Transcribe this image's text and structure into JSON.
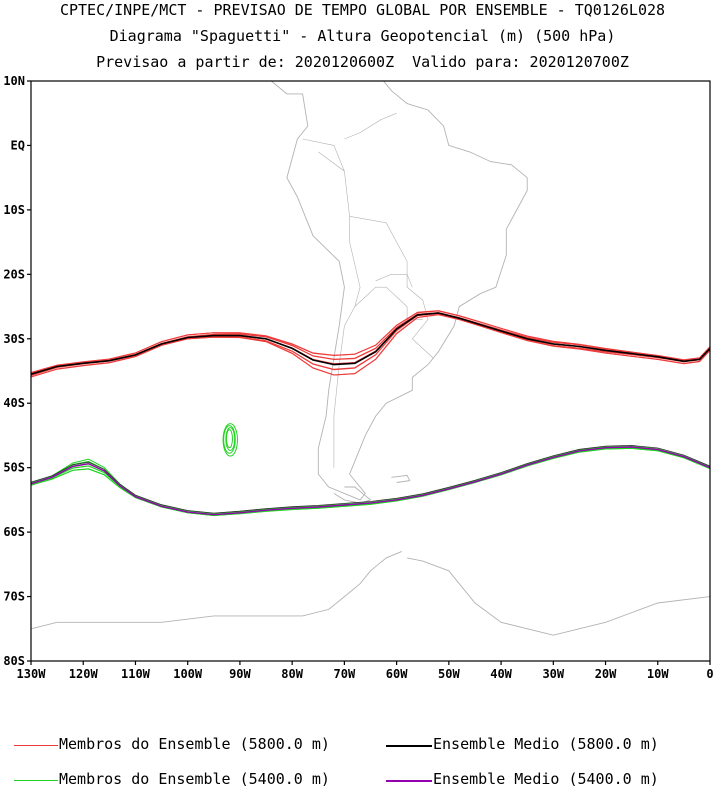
{
  "header": {
    "line1": "CPTEC/INPE/MCT - PREVISAO DE TEMPO GLOBAL POR ENSEMBLE - TQ0126L028",
    "line2": "Diagrama \"Spaguetti\" - Altura Geopotencial (m) (500 hPa)",
    "line3": "Previsao a partir de: 2020120600Z  Valido para: 2020120700Z"
  },
  "map": {
    "lon_range": [
      -130,
      0
    ],
    "lat_range": [
      -80,
      10
    ],
    "lat_ticks": [
      {
        "lat": 10,
        "label": "10N"
      },
      {
        "lat": 0,
        "label": "EQ"
      },
      {
        "lat": -10,
        "label": "10S"
      },
      {
        "lat": -20,
        "label": "20S"
      },
      {
        "lat": -30,
        "label": "30S"
      },
      {
        "lat": -40,
        "label": "40S"
      },
      {
        "lat": -50,
        "label": "50S"
      },
      {
        "lat": -60,
        "label": "60S"
      },
      {
        "lat": -70,
        "label": "70S"
      },
      {
        "lat": -80,
        "label": "80S"
      }
    ],
    "lon_ticks": [
      {
        "lon": -130,
        "label": "130W"
      },
      {
        "lon": -120,
        "label": "120W"
      },
      {
        "lon": -110,
        "label": "110W"
      },
      {
        "lon": -100,
        "label": "100W"
      },
      {
        "lon": -90,
        "label": "90W"
      },
      {
        "lon": -80,
        "label": "80W"
      },
      {
        "lon": -70,
        "label": "70W"
      },
      {
        "lon": -60,
        "label": "60W"
      },
      {
        "lon": -50,
        "label": "50W"
      },
      {
        "lon": -40,
        "label": "40W"
      },
      {
        "lon": -30,
        "label": "30W"
      },
      {
        "lon": -20,
        "label": "20W"
      },
      {
        "lon": -10,
        "label": "10W"
      },
      {
        "lon": 0,
        "label": "0"
      }
    ],
    "colors": {
      "member_5800": "#ef3b3b",
      "mean_5800": "#000000",
      "member_5400": "#22d422",
      "mean_5400": "#9400b0",
      "coast": "#b3b3b3"
    },
    "contour_5800_mean": [
      [
        -130,
        -35.5
      ],
      [
        -125,
        -34.3
      ],
      [
        -120,
        -33.8
      ],
      [
        -115,
        -33.4
      ],
      [
        -110,
        -32.5
      ],
      [
        -105,
        -30.8
      ],
      [
        -100,
        -29.8
      ],
      [
        -95,
        -29.5
      ],
      [
        -90,
        -29.5
      ],
      [
        -85,
        -30.0
      ],
      [
        -80,
        -31.5
      ],
      [
        -76,
        -33.3
      ],
      [
        -72,
        -34.0
      ],
      [
        -68,
        -33.8
      ],
      [
        -64,
        -32.0
      ],
      [
        -60,
        -28.5
      ],
      [
        -56,
        -26.3
      ],
      [
        -52,
        -26.0
      ],
      [
        -48,
        -26.8
      ],
      [
        -44,
        -27.8
      ],
      [
        -40,
        -28.8
      ],
      [
        -35,
        -30.0
      ],
      [
        -30,
        -30.8
      ],
      [
        -25,
        -31.2
      ],
      [
        -20,
        -31.8
      ],
      [
        -15,
        -32.3
      ],
      [
        -10,
        -32.8
      ],
      [
        -5,
        -33.5
      ],
      [
        -2,
        -33.2
      ],
      [
        0,
        -31.5
      ]
    ],
    "contour_5400_mean": [
      [
        -130,
        -52.5
      ],
      [
        -126,
        -51.5
      ],
      [
        -122,
        -49.8
      ],
      [
        -119,
        -49.4
      ],
      [
        -116,
        -50.5
      ],
      [
        -113,
        -52.8
      ],
      [
        -110,
        -54.5
      ],
      [
        -105,
        -56.0
      ],
      [
        -100,
        -56.9
      ],
      [
        -95,
        -57.3
      ],
      [
        -90,
        -57.0
      ],
      [
        -85,
        -56.6
      ],
      [
        -80,
        -56.3
      ],
      [
        -75,
        -56.1
      ],
      [
        -70,
        -55.8
      ],
      [
        -65,
        -55.5
      ],
      [
        -60,
        -55.0
      ],
      [
        -55,
        -54.3
      ],
      [
        -50,
        -53.3
      ],
      [
        -45,
        -52.2
      ],
      [
        -40,
        -51.0
      ],
      [
        -35,
        -49.6
      ],
      [
        -30,
        -48.4
      ],
      [
        -25,
        -47.4
      ],
      [
        -20,
        -46.9
      ],
      [
        -15,
        -46.8
      ],
      [
        -10,
        -47.2
      ],
      [
        -5,
        -48.3
      ],
      [
        0,
        -50.0
      ]
    ],
    "small_5400_centre": [
      -92,
      -45.5
    ]
  },
  "legend": {
    "member_5800": "Membros do Ensemble (5800.0 m)",
    "mean_5800": "Ensemble Medio (5800.0 m)",
    "member_5400": "Membros do Ensemble (5400.0 m)",
    "mean_5400": "Ensemble Medio (5400.0 m)"
  }
}
